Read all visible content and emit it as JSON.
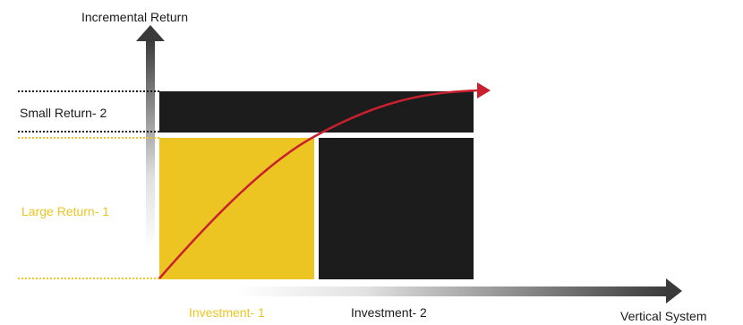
{
  "axes": {
    "y_title": "Incremental Return",
    "x_title": "Vertical System"
  },
  "labels": {
    "small_return": "Small Return- 2",
    "large_return": "Large Return- 1",
    "investment_1": "Investment- 1",
    "investment_2": "Investment- 2"
  },
  "colors": {
    "yellow": "#ECC523",
    "black": "#1C1C1C",
    "curve": "#C8202E",
    "dark_text": "#1A1A1A",
    "axis_dark": "#3A3A3A",
    "axis_light": "#FFFFFF"
  },
  "icons": {
    "y_axis_arrow": "arrow-up-icon",
    "x_axis_arrow": "arrow-right-icon",
    "curve_arrow": "arrow-right-icon"
  }
}
